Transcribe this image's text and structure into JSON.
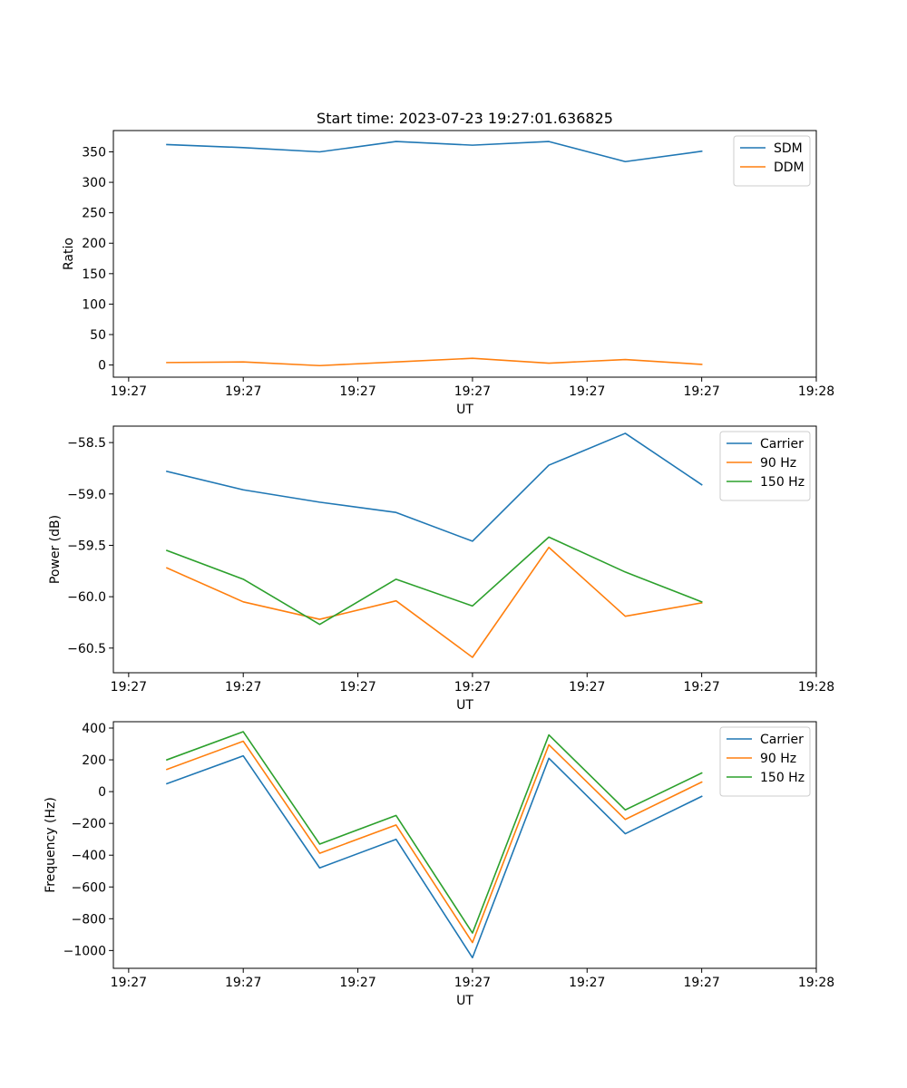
{
  "figure": {
    "title": "Start time: 2023-07-23 19:27:01.636825"
  },
  "colors": {
    "blue": "#1f77b4",
    "orange": "#ff7f0e",
    "green": "#2ca02c"
  },
  "chart_data": [
    {
      "id": "ratio",
      "type": "line",
      "title": "Start time: 2023-07-23 19:27:01.636825",
      "xlabel": "UT",
      "ylabel": "Ratio",
      "x": [
        1,
        2,
        3,
        4,
        5,
        6,
        7,
        8
      ],
      "xlim": [
        0.3,
        9.5
      ],
      "x_ticks": [
        0.5,
        2,
        3.5,
        5,
        6.5,
        8,
        9.5
      ],
      "x_tick_labels": [
        "19:27",
        "19:27",
        "19:27",
        "19:27",
        "19:27",
        "19:27",
        "19:28"
      ],
      "ylim": [
        -20,
        385
      ],
      "y_ticks": [
        0,
        50,
        100,
        150,
        200,
        250,
        300,
        350
      ],
      "y_tick_labels": [
        "0",
        "50",
        "100",
        "150",
        "200",
        "250",
        "300",
        "350"
      ],
      "legend_position": "top-right",
      "series": [
        {
          "name": "SDM",
          "color": "#1f77b4",
          "values": [
            362,
            357,
            350,
            367,
            361,
            367,
            334,
            351
          ]
        },
        {
          "name": "DDM",
          "color": "#ff7f0e",
          "values": [
            4,
            5,
            -1,
            5,
            11,
            3,
            9,
            1
          ]
        }
      ]
    },
    {
      "id": "power",
      "type": "line",
      "title": "",
      "xlabel": "UT",
      "ylabel": "Power (dB)",
      "x": [
        1,
        2,
        3,
        4,
        5,
        6,
        7,
        8
      ],
      "xlim": [
        0.3,
        9.5
      ],
      "x_ticks": [
        0.5,
        2,
        3.5,
        5,
        6.5,
        8,
        9.5
      ],
      "x_tick_labels": [
        "19:27",
        "19:27",
        "19:27",
        "19:27",
        "19:27",
        "19:27",
        "19:28"
      ],
      "ylim": [
        -60.74,
        -58.34
      ],
      "y_ticks": [
        -60.5,
        -60.0,
        -59.5,
        -59.0,
        -58.5
      ],
      "y_tick_labels": [
        "−60.5",
        "−60.0",
        "−59.5",
        "−59.0",
        "−58.5"
      ],
      "legend_position": "top-right",
      "series": [
        {
          "name": "Carrier",
          "color": "#1f77b4",
          "values": [
            -58.78,
            -58.96,
            -59.08,
            -59.18,
            -59.46,
            -58.72,
            -58.41,
            -58.91
          ]
        },
        {
          "name": "90 Hz",
          "color": "#ff7f0e",
          "values": [
            -59.72,
            -60.05,
            -60.22,
            -60.04,
            -60.59,
            -59.52,
            -60.19,
            -60.06
          ]
        },
        {
          "name": "150 Hz",
          "color": "#2ca02c",
          "values": [
            -59.55,
            -59.83,
            -60.27,
            -59.83,
            -60.09,
            -59.42,
            -59.76,
            -60.05
          ]
        }
      ]
    },
    {
      "id": "frequency",
      "type": "line",
      "title": "",
      "xlabel": "UT",
      "ylabel": "Frequency (Hz)",
      "x": [
        1,
        2,
        3,
        4,
        5,
        6,
        7,
        8
      ],
      "xlim": [
        0.3,
        9.5
      ],
      "x_ticks": [
        0.5,
        2,
        3.5,
        5,
        6.5,
        8,
        9.5
      ],
      "x_tick_labels": [
        "19:27",
        "19:27",
        "19:27",
        "19:27",
        "19:27",
        "19:27",
        "19:28"
      ],
      "ylim": [
        -1112,
        440
      ],
      "y_ticks": [
        -1000,
        -800,
        -600,
        -400,
        -200,
        0,
        200,
        400
      ],
      "y_tick_labels": [
        "−1000",
        "−800",
        "−600",
        "−400",
        "−200",
        "0",
        "200",
        "400"
      ],
      "legend_position": "top-right",
      "series": [
        {
          "name": "Carrier",
          "color": "#1f77b4",
          "values": [
            50,
            225,
            -480,
            -300,
            -1045,
            210,
            -265,
            -30
          ]
        },
        {
          "name": "90 Hz",
          "color": "#ff7f0e",
          "values": [
            140,
            317,
            -388,
            -210,
            -950,
            295,
            -175,
            60
          ]
        },
        {
          "name": "150 Hz",
          "color": "#2ca02c",
          "values": [
            200,
            377,
            -330,
            -150,
            -890,
            357,
            -115,
            117
          ]
        }
      ]
    }
  ]
}
